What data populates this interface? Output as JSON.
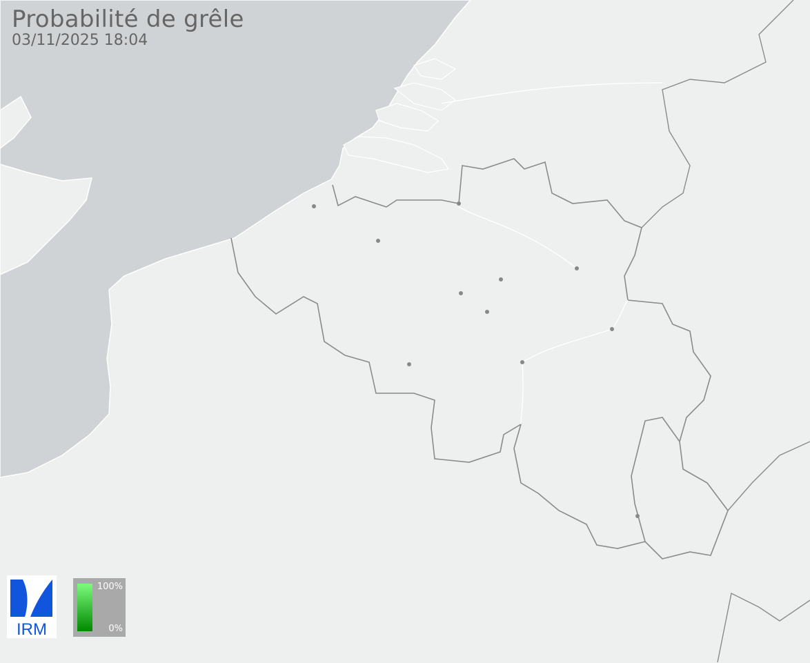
{
  "header": {
    "title": "Probabilité de grêle",
    "datetime": "03/11/2025 18:04"
  },
  "logo": {
    "text": "IRM",
    "color": "#1155dd"
  },
  "legend": {
    "max_label": "100%",
    "min_label": "0%",
    "color_max": "#7dfb7d",
    "color_min": "#008800",
    "background": "#a9a9a9"
  },
  "map": {
    "sea_color": "#d0d3d5",
    "land_color": "#eeefef",
    "border_color": "#8a8a8a",
    "city_marker_color": "#888888",
    "hail_probability_areas": []
  }
}
